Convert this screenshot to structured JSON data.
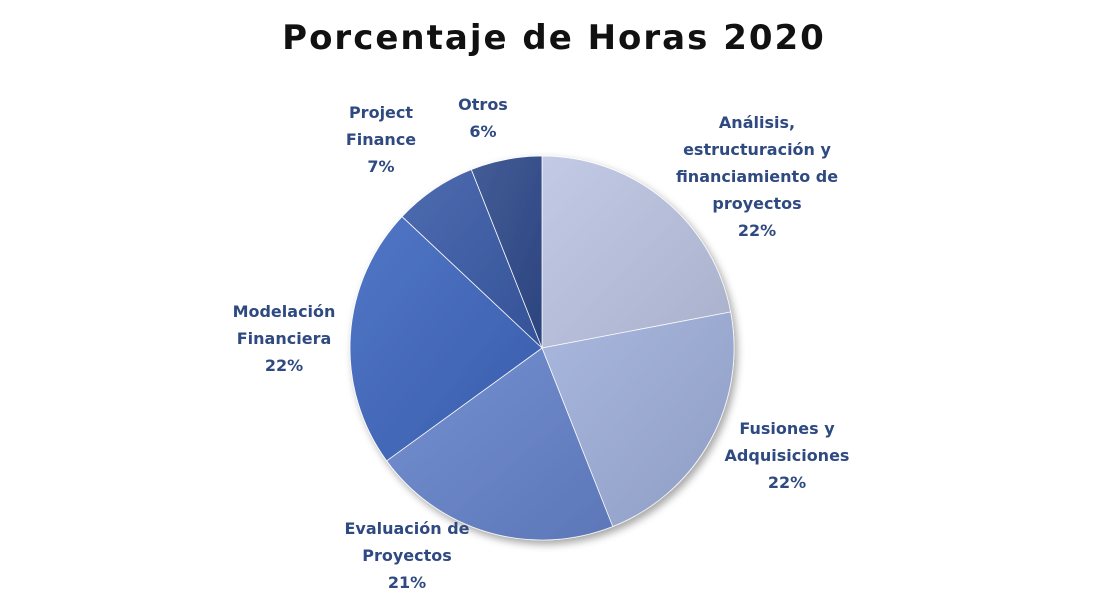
{
  "chart_data": {
    "type": "pie",
    "title": "Porcentaje de Horas 2020",
    "slices": [
      {
        "name": "Análisis, estructuración y financiamiento de proyectos",
        "value": 22,
        "value_label": "22%",
        "label_lines": [
          "Análisis,",
          "estructuración y",
          "financiamiento de",
          "proyectos"
        ],
        "color": "#bcc4e2"
      },
      {
        "name": "Fusiones y Adquisiciones",
        "value": 22,
        "value_label": "22%",
        "label_lines": [
          "Fusiones y",
          "Adquisiciones"
        ],
        "color": "#9fafdb"
      },
      {
        "name": "Evaluación de Proyectos",
        "value": 21,
        "value_label": "21%",
        "label_lines": [
          "Evaluación de",
          "Proyectos"
        ],
        "color": "#6684cc"
      },
      {
        "name": "Modelación Financiera",
        "value": 22,
        "value_label": "22%",
        "label_lines": [
          "Modelación",
          "Financiera"
        ],
        "color": "#3e67bf"
      },
      {
        "name": "Project Finance",
        "value": 7,
        "value_label": "7%",
        "label_lines": [
          "Project",
          "Finance"
        ],
        "color": "#3a5ba8"
      },
      {
        "name": "Otros",
        "value": 6,
        "value_label": "6%",
        "label_lines": [
          "Otros"
        ],
        "color": "#2f4b8c"
      }
    ],
    "start_angle_deg": 0,
    "direction": "clockwise",
    "label_color": "#2f4a80",
    "legend": "none"
  }
}
